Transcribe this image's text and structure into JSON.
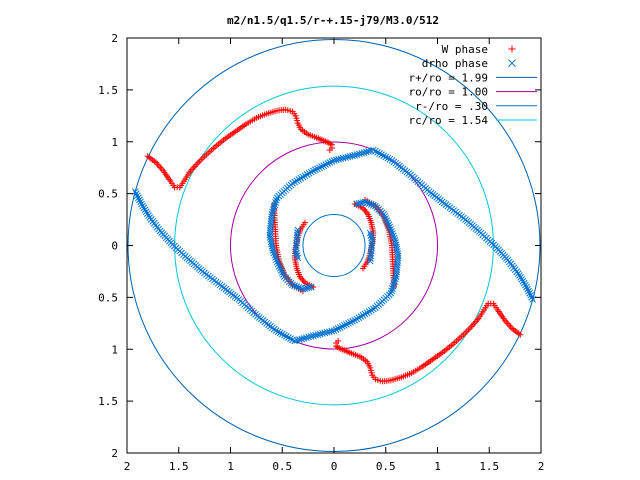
{
  "chart_data": {
    "type": "scatter",
    "title": "m2/n1.5/q1.5/r-+.15-j79/M3.0/512",
    "xlim": [
      -2,
      2
    ],
    "ylim": [
      -2,
      2
    ],
    "xticks": [
      -2,
      -1.5,
      -1,
      -0.5,
      0,
      0.5,
      1,
      1.5,
      2
    ],
    "xtick_labels": [
      "2",
      "1.5",
      "1",
      "0.5",
      "0",
      "0.5",
      "1",
      "1.5",
      "2"
    ],
    "yticks": [
      -2,
      -1.5,
      -1,
      -0.5,
      0,
      0.5,
      1,
      1.5,
      2
    ],
    "ytick_labels": [
      "2",
      "1.5",
      "1",
      "0.5",
      "0",
      "0.5",
      "1",
      "1.5",
      "2"
    ],
    "grid": false,
    "legend_position": "top-right",
    "series": [
      {
        "name": "W phase",
        "kind": "points",
        "marker": "plus",
        "color": "#ff0000",
        "curves": [
          [
            [
              -1.8,
              0.86
            ],
            [
              -1.72,
              0.8
            ],
            [
              -1.65,
              0.72
            ],
            [
              -1.58,
              0.62
            ],
            [
              -1.54,
              0.56
            ],
            [
              -1.49,
              0.56
            ],
            [
              -1.45,
              0.62
            ],
            [
              -1.4,
              0.7
            ],
            [
              -1.33,
              0.78
            ],
            [
              -1.25,
              0.86
            ],
            [
              -1.15,
              0.95
            ],
            [
              -1.05,
              1.03
            ],
            [
              -0.95,
              1.1
            ],
            [
              -0.85,
              1.17
            ],
            [
              -0.75,
              1.23
            ],
            [
              -0.65,
              1.27
            ],
            [
              -0.55,
              1.3
            ],
            [
              -0.47,
              1.31
            ],
            [
              -0.4,
              1.29
            ],
            [
              -0.37,
              1.25
            ],
            [
              -0.35,
              1.18
            ],
            [
              -0.32,
              1.12
            ],
            [
              -0.25,
              1.07
            ],
            [
              -0.17,
              1.04
            ],
            [
              -0.1,
              1.01
            ],
            [
              -0.05,
              0.99
            ],
            [
              -0.02,
              0.97
            ],
            [
              -0.02,
              0.94
            ],
            [
              -0.04,
              0.92
            ]
          ],
          [
            [
              1.8,
              -0.86
            ],
            [
              1.72,
              -0.8
            ],
            [
              1.65,
              -0.72
            ],
            [
              1.58,
              -0.62
            ],
            [
              1.54,
              -0.56
            ],
            [
              1.49,
              -0.56
            ],
            [
              1.45,
              -0.62
            ],
            [
              1.4,
              -0.7
            ],
            [
              1.33,
              -0.78
            ],
            [
              1.25,
              -0.86
            ],
            [
              1.15,
              -0.95
            ],
            [
              1.05,
              -1.03
            ],
            [
              0.95,
              -1.1
            ],
            [
              0.85,
              -1.17
            ],
            [
              0.75,
              -1.23
            ],
            [
              0.65,
              -1.27
            ],
            [
              0.55,
              -1.3
            ],
            [
              0.47,
              -1.31
            ],
            [
              0.4,
              -1.29
            ],
            [
              0.37,
              -1.25
            ],
            [
              0.35,
              -1.18
            ],
            [
              0.32,
              -1.12
            ],
            [
              0.25,
              -1.07
            ],
            [
              0.17,
              -1.04
            ],
            [
              0.1,
              -1.01
            ],
            [
              0.05,
              -0.99
            ],
            [
              0.02,
              -0.97
            ],
            [
              0.02,
              -0.94
            ],
            [
              0.04,
              -0.92
            ]
          ],
          [
            [
              0.2,
              0.4
            ],
            [
              0.28,
              0.36
            ],
            [
              0.33,
              0.3
            ],
            [
              0.36,
              0.22
            ],
            [
              0.38,
              0.12
            ],
            [
              0.37,
              0.02
            ],
            [
              0.35,
              -0.08
            ],
            [
              0.32,
              -0.16
            ],
            [
              0.28,
              -0.22
            ]
          ],
          [
            [
              -0.2,
              -0.4
            ],
            [
              -0.28,
              -0.36
            ],
            [
              -0.33,
              -0.3
            ],
            [
              -0.36,
              -0.22
            ],
            [
              -0.38,
              -0.12
            ],
            [
              -0.37,
              -0.02
            ],
            [
              -0.35,
              0.08
            ],
            [
              -0.32,
              0.16
            ],
            [
              -0.28,
              0.22
            ]
          ],
          [
            [
              -0.58,
              0.4
            ],
            [
              -0.57,
              0.2
            ],
            [
              -0.56,
              0.0
            ],
            [
              -0.53,
              -0.15
            ],
            [
              -0.48,
              -0.28
            ],
            [
              -0.4,
              -0.38
            ],
            [
              -0.3,
              -0.44
            ]
          ],
          [
            [
              0.58,
              -0.4
            ],
            [
              0.57,
              -0.2
            ],
            [
              0.56,
              0.0
            ],
            [
              0.53,
              0.15
            ],
            [
              0.48,
              0.28
            ],
            [
              0.4,
              0.38
            ],
            [
              0.3,
              0.44
            ]
          ]
        ]
      },
      {
        "name": "drho phase",
        "kind": "points",
        "marker": "cross",
        "color": "#0072d0",
        "curves": [
          [
            [
              -1.92,
              0.52
            ],
            [
              -1.86,
              0.4
            ],
            [
              -1.78,
              0.27
            ],
            [
              -1.68,
              0.14
            ],
            [
              -1.56,
              0.01
            ],
            [
              -1.42,
              -0.12
            ],
            [
              -1.27,
              -0.25
            ],
            [
              -1.1,
              -0.38
            ],
            [
              -0.92,
              -0.52
            ],
            [
              -0.74,
              -0.68
            ],
            [
              -0.56,
              -0.82
            ],
            [
              -0.38,
              -0.92
            ],
            [
              -0.2,
              -0.87
            ],
            [
              0.0,
              -0.82
            ],
            [
              0.2,
              -0.72
            ],
            [
              0.4,
              -0.6
            ],
            [
              0.55,
              -0.46
            ],
            [
              0.6,
              -0.3
            ],
            [
              0.62,
              -0.1
            ],
            [
              0.59,
              0.05
            ],
            [
              0.54,
              0.18
            ],
            [
              0.48,
              0.3
            ],
            [
              0.4,
              0.38
            ],
            [
              0.3,
              0.42
            ],
            [
              0.22,
              0.4
            ]
          ],
          [
            [
              1.92,
              -0.52
            ],
            [
              1.86,
              -0.4
            ],
            [
              1.78,
              -0.27
            ],
            [
              1.68,
              -0.14
            ],
            [
              1.56,
              -0.01
            ],
            [
              1.42,
              0.12
            ],
            [
              1.27,
              0.25
            ],
            [
              1.1,
              0.38
            ],
            [
              0.92,
              0.52
            ],
            [
              0.74,
              0.68
            ],
            [
              0.56,
              0.82
            ],
            [
              0.38,
              0.92
            ],
            [
              0.2,
              0.87
            ],
            [
              0.0,
              0.82
            ],
            [
              -0.2,
              0.72
            ],
            [
              -0.4,
              0.6
            ],
            [
              -0.55,
              0.46
            ],
            [
              -0.6,
              0.3
            ],
            [
              -0.62,
              0.1
            ],
            [
              -0.59,
              -0.05
            ],
            [
              -0.54,
              -0.18
            ],
            [
              -0.48,
              -0.3
            ],
            [
              -0.4,
              -0.38
            ],
            [
              -0.3,
              -0.42
            ],
            [
              -0.22,
              -0.4
            ]
          ],
          [
            [
              -0.35,
              0.15
            ],
            [
              -0.36,
              0.05
            ],
            [
              -0.37,
              -0.05
            ],
            [
              -0.35,
              -0.12
            ]
          ],
          [
            [
              0.35,
              -0.15
            ],
            [
              0.36,
              -0.05
            ],
            [
              0.37,
              0.05
            ],
            [
              0.35,
              0.12
            ]
          ]
        ]
      },
      {
        "name": "r+/ro = 1.99",
        "kind": "circle",
        "radius": 1.99,
        "color": "#0060ad"
      },
      {
        "name": "ro/ro = 1.00",
        "kind": "circle",
        "radius": 1.0,
        "color": "#a000a0"
      },
      {
        "name": "r-/ro = .30",
        "kind": "circle",
        "radius": 0.3,
        "color": "#0072c6"
      },
      {
        "name": "rc/ro = 1.54",
        "kind": "circle",
        "radius": 1.54,
        "color": "#00c8d8"
      }
    ]
  }
}
